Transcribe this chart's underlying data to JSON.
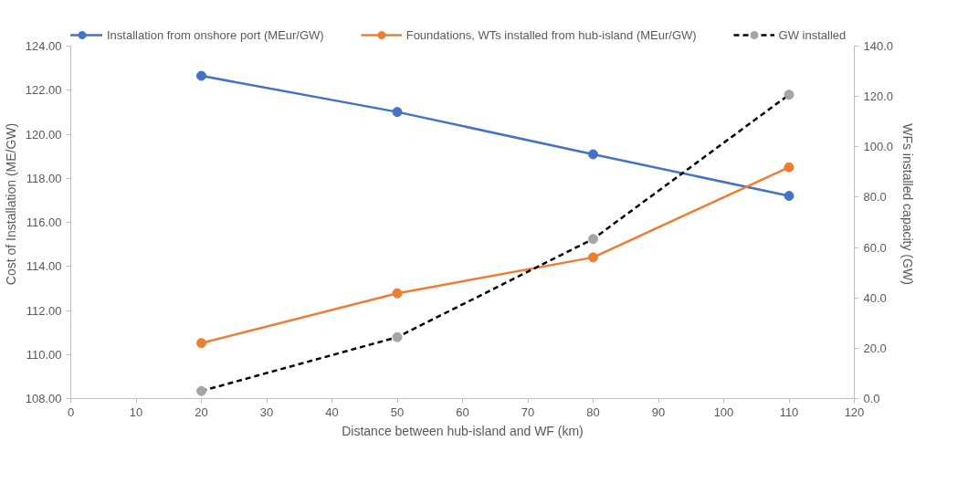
{
  "chart_data": {
    "type": "line",
    "xlabel": "Distance between hub-island and WF (km)",
    "ylabel": "Cost of Installation (ME/GW)",
    "y2label": "WFs installed capacity (GW)",
    "x": [
      20,
      50,
      80,
      110
    ],
    "series": [
      {
        "name": "Installation from onshore port (MEur/GW)",
        "color": "#4472c4",
        "values": [
          122.65,
          121.01,
          119.09,
          117.2
        ]
      },
      {
        "name": "Foundations, WTs installed from hub-island (MEur/GW)",
        "color": "#ed7d31",
        "values": [
          110.52,
          112.78,
          114.41,
          118.5
        ]
      },
      {
        "name": "GW installed",
        "color": "#000000",
        "colors": [
          "#a5a5a5",
          "#a5a5a5",
          "#a5a5a5",
          "#a5a5a5"
        ],
        "values": [
          3,
          24.4,
          63.4,
          120.7
        ],
        "axis": "y2",
        "line_style": "dashed"
      }
    ],
    "xlim": [
      0,
      120
    ],
    "xticks": [
      0,
      10,
      20,
      30,
      40,
      50,
      60,
      70,
      80,
      90,
      100,
      110,
      120
    ],
    "ylim": [
      108,
      124
    ],
    "yticks": [
      {
        "value": 108,
        "label": "108.00"
      },
      {
        "value": 110,
        "label": "110.00"
      },
      {
        "value": 112,
        "label": "112.00"
      },
      {
        "value": 114,
        "label": "114.00"
      },
      {
        "value": 116,
        "label": "116.00"
      },
      {
        "value": 118,
        "label": "118.00"
      },
      {
        "value": 120,
        "label": "120.00"
      },
      {
        "value": 122,
        "label": "122.00"
      },
      {
        "value": 124,
        "label": "124.00"
      }
    ],
    "y2lim": [
      0,
      140
    ],
    "y2ticks": [
      {
        "value": 0,
        "label": "0.0"
      },
      {
        "value": 20,
        "label": "20.0"
      },
      {
        "value": 40,
        "label": "40.0"
      },
      {
        "value": 60,
        "label": "60.0"
      },
      {
        "value": 80,
        "label": "80.0"
      },
      {
        "value": 100,
        "label": "100.0"
      },
      {
        "value": 120,
        "label": "120.0"
      },
      {
        "value": 140,
        "label": "140.0"
      }
    ],
    "marker": "circle",
    "line_style": "solid",
    "grid": false,
    "legend": "top"
  }
}
